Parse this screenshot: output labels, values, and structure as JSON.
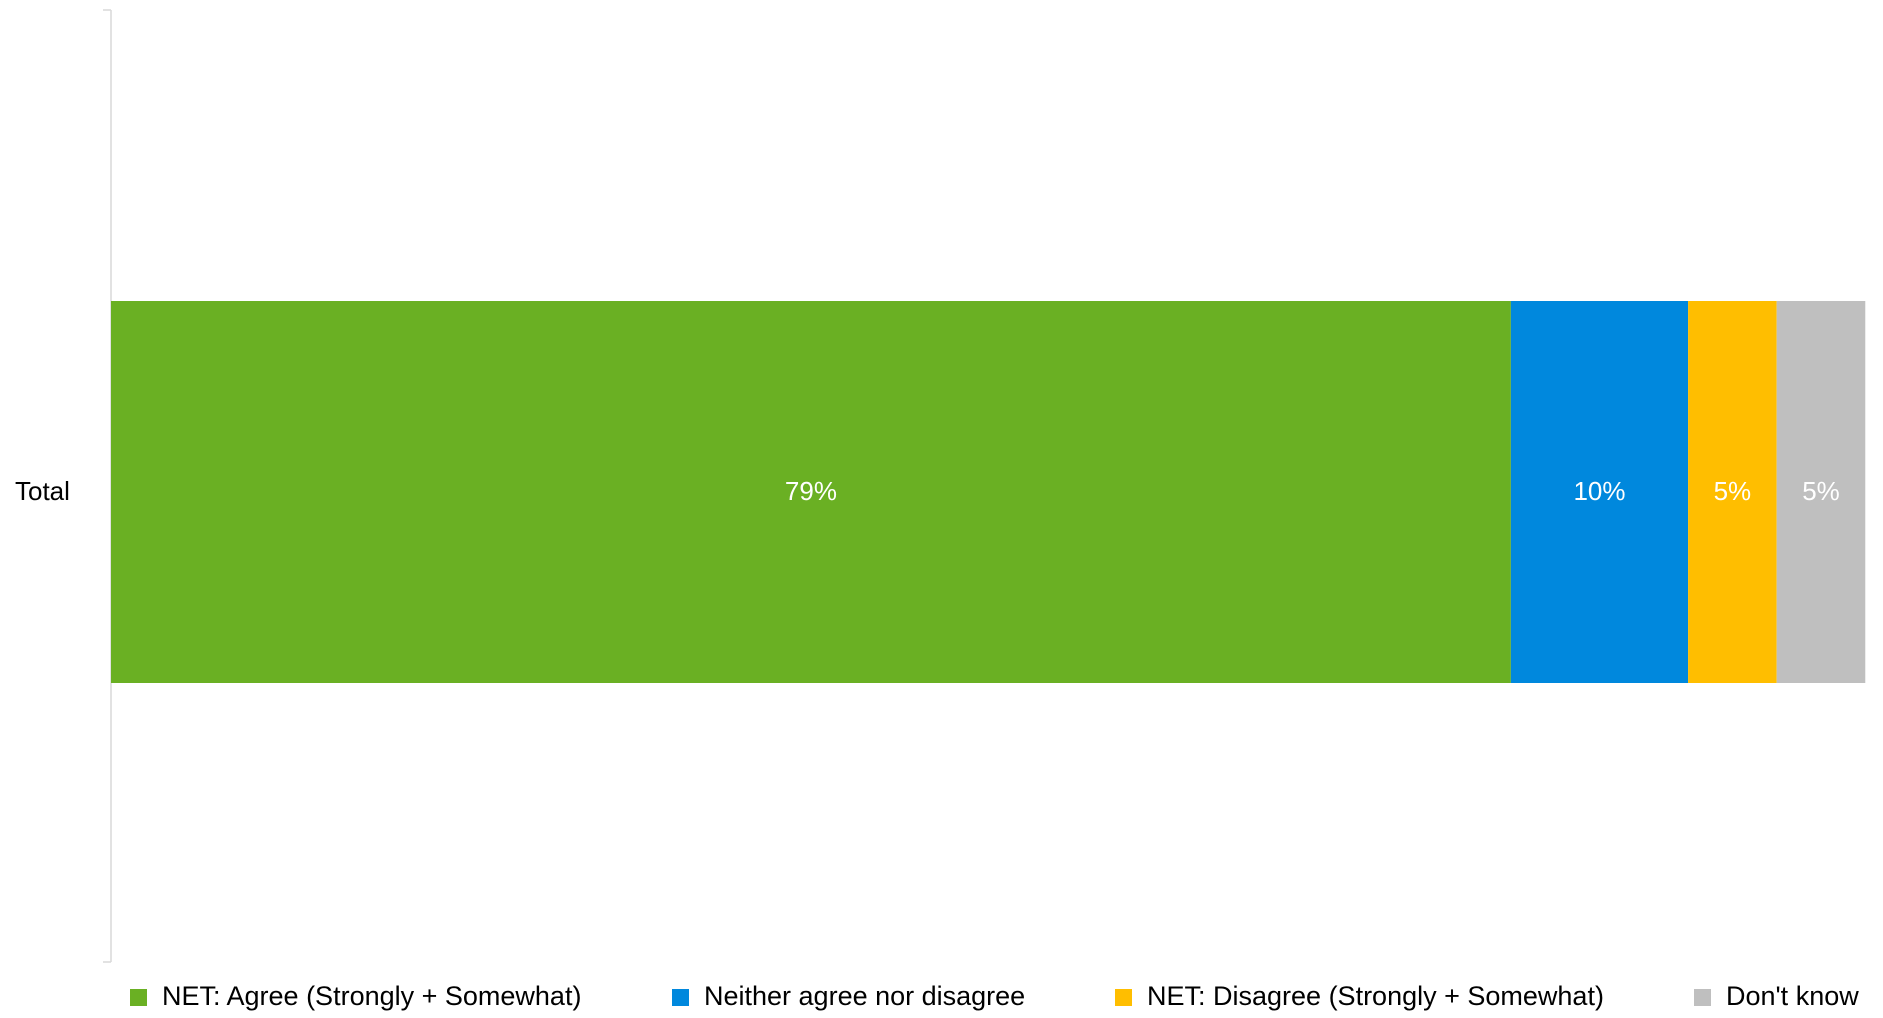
{
  "chart_data": {
    "type": "bar",
    "orientation": "horizontal",
    "stacked": true,
    "categories": [
      "Total"
    ],
    "series": [
      {
        "name": "NET: Agree (Strongly + Somewhat)",
        "values": [
          79
        ],
        "label": "79%",
        "color": "#6AB023"
      },
      {
        "name": "Neither agree nor disagree",
        "values": [
          10
        ],
        "label": "10%",
        "color": "#0088DD"
      },
      {
        "name": "NET: Disagree (Strongly + Somewhat)",
        "values": [
          5
        ],
        "label": "5%",
        "color": "#FFBE00"
      },
      {
        "name": "Don't know",
        "values": [
          5
        ],
        "label": "5%",
        "color": "#BFBFBF"
      }
    ],
    "xlim": [
      0,
      100
    ],
    "unit": "%",
    "grid": false,
    "legend": "bottom"
  }
}
